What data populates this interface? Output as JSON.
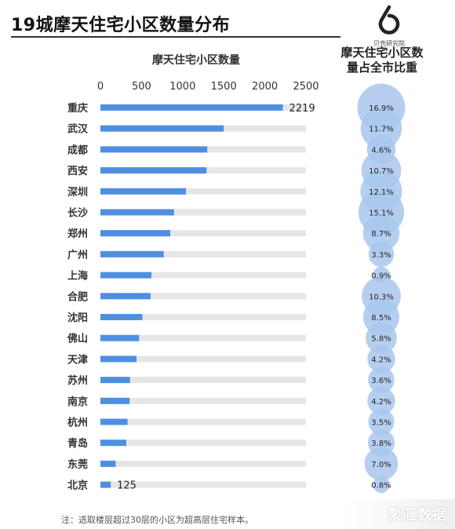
{
  "header": {
    "title": "19城摩天住宅小区数量分布",
    "logo_text": "贝壳研究院",
    "bar_column_title": "摩天住宅小区数量",
    "share_column_title_line1": "摩天住宅小区数",
    "share_column_title_line2": "量占全市比重"
  },
  "footer": {
    "note": "注：选取楼层超过30层的小区为超高层住宅样本。",
    "watermark": "聚汇数据"
  },
  "colors": {
    "bar": "#4f8fe0",
    "track": "#e6e6e6",
    "bubble": "#a9c7ef"
  },
  "chart_data": {
    "type": "bar",
    "orientation": "horizontal",
    "categories": [
      "重庆",
      "武汉",
      "成都",
      "西安",
      "深圳",
      "长沙",
      "郑州",
      "广州",
      "上海",
      "合肥",
      "沈阳",
      "佛山",
      "天津",
      "苏州",
      "南京",
      "杭州",
      "青岛",
      "东莞",
      "北京"
    ],
    "values": [
      2219,
      1500,
      1300,
      1290,
      1040,
      895,
      850,
      770,
      620,
      610,
      510,
      470,
      440,
      360,
      355,
      330,
      315,
      185,
      125
    ],
    "share_percent_labels": [
      "16.9%",
      "11.7%",
      "4.6%",
      "10.7%",
      "12.1%",
      "15.1%",
      "8.7%",
      "3.3%",
      "0.9%",
      "10.3%",
      "8.5%",
      "5.8%",
      "4.2%",
      "3.6%",
      "4.2%",
      "3.5%",
      "3.8%",
      "7.0%",
      "0.8%"
    ],
    "share_percent": [
      16.9,
      11.7,
      4.6,
      10.7,
      12.1,
      15.1,
      8.7,
      3.3,
      0.9,
      10.3,
      8.5,
      5.8,
      4.2,
      3.6,
      4.2,
      3.5,
      3.8,
      7.0,
      0.8
    ],
    "data_labels": {
      "0": "2219",
      "18": "125"
    },
    "x_ticks": [
      "0",
      "500",
      "1000",
      "1500",
      "2000",
      "2500"
    ],
    "xlim": [
      0,
      2500
    ],
    "grid": false,
    "legend": "none"
  }
}
